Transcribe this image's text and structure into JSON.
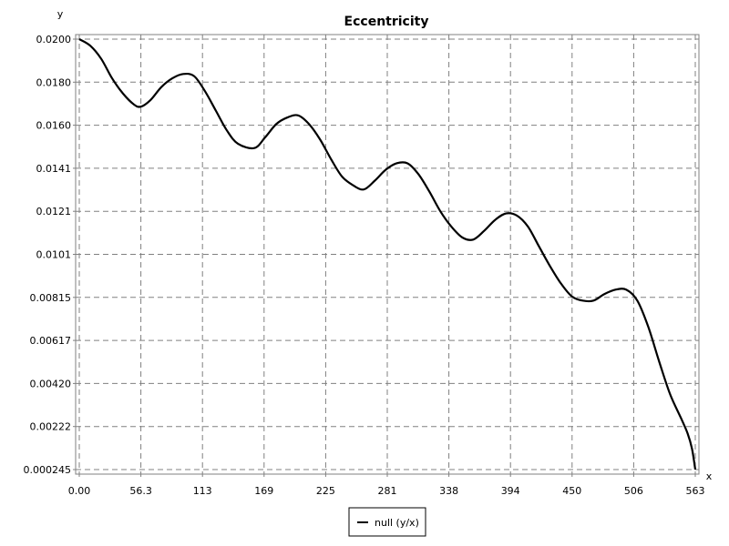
{
  "chart_data": {
    "type": "line",
    "title": "Eccentricity",
    "xlabel": "x",
    "ylabel": "y",
    "xlim": [
      0,
      563
    ],
    "ylim": [
      0.000245,
      0.02
    ],
    "x_ticks": [
      "0.00",
      "56.3",
      "113",
      "169",
      "225",
      "281",
      "338",
      "394",
      "450",
      "506",
      "563"
    ],
    "y_ticks": [
      "0.0200",
      "0.0180",
      "0.0160",
      "0.0141",
      "0.0121",
      "0.0101",
      "0.00815",
      "0.00617",
      "0.00420",
      "0.00222",
      "0.000245"
    ],
    "grid": true,
    "legend_position": "bottom-center",
    "series": [
      {
        "name": "null (y/x)",
        "color": "#000000",
        "x": [
          0,
          10,
          20,
          30,
          40,
          50,
          56.3,
          65,
          75,
          85,
          95,
          105,
          115,
          125,
          135,
          145,
          160,
          170,
          180,
          190,
          200,
          210,
          220,
          230,
          240,
          250,
          260,
          270,
          280,
          290,
          300,
          310,
          320,
          330,
          340,
          350,
          360,
          370,
          380,
          390,
          400,
          410,
          420,
          430,
          440,
          450,
          460,
          470,
          480,
          490,
          500,
          510,
          520,
          530,
          540,
          550,
          556,
          560,
          563
        ],
        "values": [
          0.02,
          0.0197,
          0.0191,
          0.0182,
          0.0175,
          0.017,
          0.0169,
          0.0172,
          0.0178,
          0.0182,
          0.0184,
          0.0183,
          0.0176,
          0.0167,
          0.0158,
          0.0152,
          0.015,
          0.0155,
          0.0161,
          0.0164,
          0.0165,
          0.0161,
          0.0154,
          0.0145,
          0.0137,
          0.0133,
          0.0131,
          0.0135,
          0.014,
          0.0143,
          0.0143,
          0.0138,
          0.013,
          0.0121,
          0.0114,
          0.0109,
          0.0108,
          0.0112,
          0.0117,
          0.012,
          0.0119,
          0.0114,
          0.0105,
          0.0096,
          0.0088,
          0.0082,
          0.008,
          0.008,
          0.0083,
          0.0085,
          0.0085,
          0.008,
          0.0068,
          0.0052,
          0.0037,
          0.0026,
          0.0019,
          0.0012,
          0.000245
        ]
      }
    ]
  }
}
